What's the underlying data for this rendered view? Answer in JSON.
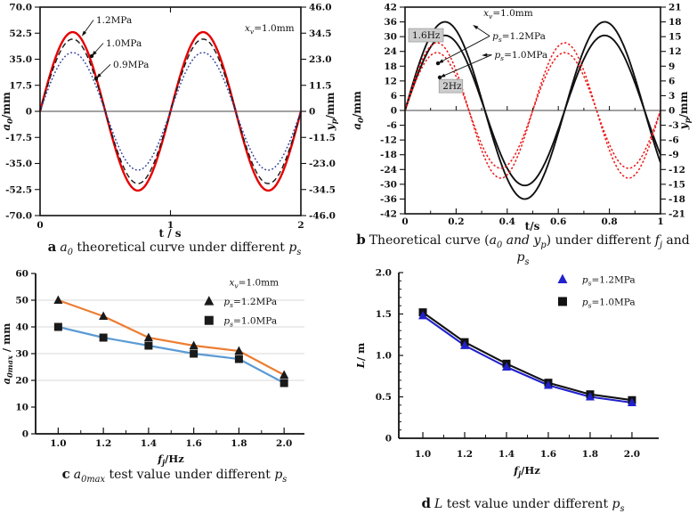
{
  "figure": {
    "background": "#ffffff",
    "text_color": "#111111",
    "gridline_color": "#d9d9d9"
  },
  "chart_data": [
    {
      "id": "a",
      "type": "line",
      "subtype": "sine",
      "caption_letter": "a",
      "caption_text": "*a_{0}* theoretical curve under different *p_{s}*",
      "xlabel": "t / s",
      "ylabel_left": "*a_{0}*/mm",
      "ylabel_right": "*y_{p}*/mm",
      "xlim": [
        0,
        2
      ],
      "xticks": {
        "values": [
          0,
          1,
          2
        ],
        "labels": [
          "0",
          "1",
          "2"
        ]
      },
      "ylim_left": [
        -70,
        70
      ],
      "yticks_left": {
        "values": [
          -70,
          -52.5,
          -35,
          -17.5,
          0,
          17.5,
          35,
          52.5,
          70
        ],
        "labels": [
          "-70.0",
          "-52.5",
          "-35.0",
          "-17.5",
          "0",
          "17.5",
          "35.0",
          "52.5",
          "70.0"
        ]
      },
      "ylim_right": [
        -46,
        46
      ],
      "yticks_right": {
        "values": [
          -46,
          -34.5,
          -23,
          -11.5,
          0,
          11.5,
          23,
          34.5,
          46
        ],
        "labels": [
          "-46.0",
          "-34.5",
          "-23.0",
          "-11.5",
          "0",
          "11.5",
          "23.0",
          "34.5",
          "46.0"
        ]
      },
      "zero_line": true,
      "zero_ticks": false,
      "frame": "box",
      "series": [
        {
          "name": "1.2MPa",
          "amplitude_mm": 53.2,
          "frequency_hz": 1,
          "color": "#e60000",
          "dash": "",
          "width": 2.4
        },
        {
          "name": "1.0MPa",
          "amplitude_mm": 48.5,
          "frequency_hz": 1,
          "color": "#1a1a1a",
          "dash": "6 3.5",
          "width": 1.4
        },
        {
          "name": "0.9MPa",
          "amplitude_mm": 39.5,
          "frequency_hz": 1,
          "color": "#31409b",
          "dash": "1.8 2.4",
          "width": 1.5
        }
      ],
      "annotations": [
        {
          "text": "*x_{v}*=1.0mm",
          "fx": 0.785,
          "fy": 0.115
        },
        {
          "text": "1.2MPa",
          "fx": 0.215,
          "fy": 0.077,
          "arrows": [
            {
              "to": [
                0.16,
                0.14
              ]
            }
          ]
        },
        {
          "text": "1.0MPa",
          "fx": 0.2525,
          "fy": 0.188,
          "arrows": [
            {
              "to": [
                0.198,
                0.235
              ],
              "dot": true
            }
          ]
        },
        {
          "text": "0.9MPa",
          "fx": 0.28,
          "fy": 0.29,
          "arrows": [
            {
              "to": [
                0.215,
                0.342
              ],
              "dot": true
            }
          ]
        }
      ]
    },
    {
      "id": "b",
      "type": "line",
      "subtype": "sine",
      "caption_letter": "b",
      "caption_text": "Theoretical curve (*a_{0}* *and* *y_{p}*)  under different *f_{j}* and *p_{s}*",
      "xlabel": "t/s",
      "ylabel_left": "*a_{0}*/mm",
      "ylabel_right": "*y_{p}*/mm",
      "xlim": [
        0,
        1
      ],
      "xticks": {
        "values": [
          0,
          0.2,
          0.4,
          0.6,
          0.8,
          1
        ],
        "labels": [
          "0",
          "0.2",
          "0.4",
          "0.6",
          "0.8",
          "1"
        ],
        "minor": [
          0.1,
          0.3,
          0.5,
          0.7,
          0.9
        ]
      },
      "ylim_left": [
        -42,
        42
      ],
      "yticks_left": {
        "values": [
          -42,
          -36,
          -30,
          -24,
          -18,
          -12,
          -6,
          0,
          6,
          12,
          18,
          24,
          30,
          36,
          42
        ],
        "labels": [
          "-42",
          "-36",
          "-30",
          "-24",
          "-18",
          "-12",
          "-6",
          "0",
          "6",
          "12",
          "18",
          "24",
          "30",
          "36",
          "42"
        ]
      },
      "ylim_right": [
        -21,
        21
      ],
      "yticks_right": {
        "values": [
          -21,
          -18,
          -15,
          -12,
          -9,
          -6,
          -3,
          0,
          3,
          6,
          9,
          12,
          15,
          18,
          21
        ],
        "labels": [
          "-21",
          "-18",
          "-15",
          "-12",
          "-9",
          "-6",
          "-3",
          "0",
          "3",
          "6",
          "9",
          "12",
          "15",
          "18",
          "21"
        ]
      },
      "zero_line": true,
      "zero_ticks": true,
      "frame": "box",
      "series": [
        {
          "name": "1.6Hz ps=1.2MPa",
          "amplitude_mm": 36,
          "frequency_hz": 1.6,
          "color": "#111111",
          "dash": "",
          "width": 1.9
        },
        {
          "name": "1.6Hz ps=1.0MPa",
          "amplitude_mm": 30.5,
          "frequency_hz": 1.6,
          "color": "#111111",
          "dash": "",
          "width": 1.9
        },
        {
          "name": "2Hz ps=1.2MPa",
          "amplitude_mm": 27.5,
          "frequency_hz": 2,
          "color": "#ee1515",
          "dash": "2.4 2.2",
          "width": 1.5
        },
        {
          "name": "2Hz ps=1.0MPa",
          "amplitude_mm": 23.5,
          "frequency_hz": 2,
          "color": "#ee1515",
          "dash": "2.4 2.2",
          "width": 1.5
        }
      ],
      "annotations": [
        {
          "text": "*x_{v}*=1.0mm",
          "fx": 0.307,
          "fy": 0.043
        },
        {
          "text": "1.6Hz",
          "fx": 0.028,
          "fy": 0.151,
          "boxed": true
        },
        {
          "text": "2Hz",
          "fx": 0.147,
          "fy": 0.397,
          "boxed": true
        },
        {
          "text": "*p_{s}*=1.2MPa",
          "fx": 0.342,
          "fy": 0.155,
          "arrows": [
            {
              "to": [
                0.265,
                0.086
              ]
            },
            {
              "to": [
                0.129,
                0.272
              ],
              "dot": true
            }
          ]
        },
        {
          "text": "*p_{s}*=1.0MPa",
          "fx": 0.35,
          "fy": 0.246,
          "arrows": [
            {
              "to": [
                0.3,
                0.233
              ]
            },
            {
              "to": [
                0.136,
                0.34
              ],
              "dot": true
            }
          ]
        }
      ]
    },
    {
      "id": "c",
      "type": "line",
      "subtype": "points",
      "caption_letter": "c",
      "caption_text": "*a_{0max}*  test value under different *p_{s}*",
      "xlabel": "*f_{j}*/Hz",
      "ylabel_left": "*a_{0max}* / mm",
      "x": [
        1.0,
        1.2,
        1.4,
        1.6,
        1.8,
        2.0
      ],
      "xlim": [
        0.9,
        2.09
      ],
      "xticks": {
        "values": [
          1.0,
          1.2,
          1.4,
          1.6,
          1.8,
          2.0
        ],
        "labels": [
          "1.0",
          "1.2",
          "1.4",
          "1.6",
          "1.8",
          "2.0"
        ],
        "minor": [
          1.1,
          1.3,
          1.5,
          1.7,
          1.9
        ]
      },
      "ylim_left": [
        0,
        60
      ],
      "yticks_left": {
        "values": [
          0,
          10,
          20,
          30,
          40,
          50,
          60
        ],
        "labels": [
          "0",
          "10",
          "20",
          "30",
          "40",
          "50",
          "60"
        ]
      },
      "gridlines_y": [
        20,
        30,
        40,
        50
      ],
      "series": [
        {
          "name": "*p_{s}*=1.2MPa",
          "values": [
            50,
            44,
            36,
            33,
            31,
            22
          ],
          "line_color": "#ed7d31",
          "marker": "triangle",
          "marker_color": "#1a1a1a",
          "width": 2.2
        },
        {
          "name": "*p_{s}*=1.0MPa",
          "values": [
            40,
            36,
            33,
            30,
            28,
            19
          ],
          "line_color": "#5b9bd5",
          "marker": "square",
          "marker_color": "#1a1a1a",
          "width": 2.2
        }
      ],
      "legend": {
        "title": "*x_{v}*=1.0mm",
        "title_fx": 0.72,
        "title_fy": 0.075,
        "marker_fx": 0.645,
        "text_fx": 0.7,
        "item_fy": [
          0.195,
          0.315
        ]
      }
    },
    {
      "id": "d",
      "type": "line",
      "subtype": "points",
      "caption_letter": "d",
      "caption_text": "*L* test value under different *p_{s}*",
      "xlabel": "*f_{j}*/Hz",
      "ylabel_left": "*L*/ m",
      "x": [
        1.0,
        1.2,
        1.4,
        1.6,
        1.8,
        2.0
      ],
      "xlim": [
        0.885,
        2.128
      ],
      "xticks": {
        "values": [
          1.0,
          1.2,
          1.4,
          1.6,
          1.8,
          2.0
        ],
        "labels": [
          "1.0",
          "1.2",
          "1.4",
          "1.6",
          "1.8",
          "2.0"
        ],
        "minor": [
          1.1,
          1.3,
          1.5,
          1.7,
          1.9
        ]
      },
      "ylim_left": [
        0,
        2
      ],
      "yticks_left": {
        "values": [
          0,
          0.5,
          1,
          1.5,
          2
        ],
        "labels": [
          "0",
          "0.5",
          "1.0",
          "1.5",
          "2.0"
        ],
        "minor_step": 0.1
      },
      "series": [
        {
          "name": "*p_{s}*=1.2MPa",
          "values": [
            1.48,
            1.12,
            0.86,
            0.64,
            0.5,
            0.43
          ],
          "line_color": "#2121cc",
          "marker": "triangle",
          "marker_color": "#2121cc",
          "width": 2.1
        },
        {
          "name": "*p_{s}*=1.0MPa",
          "values": [
            1.52,
            1.16,
            0.9,
            0.67,
            0.53,
            0.46
          ],
          "line_color": "#111111",
          "marker": "square",
          "marker_color": "#111111",
          "width": 2.1
        }
      ],
      "legend": {
        "marker_fx": 0.63,
        "text_fx": 0.705,
        "item_fy": [
          0.062,
          0.196
        ]
      }
    }
  ]
}
